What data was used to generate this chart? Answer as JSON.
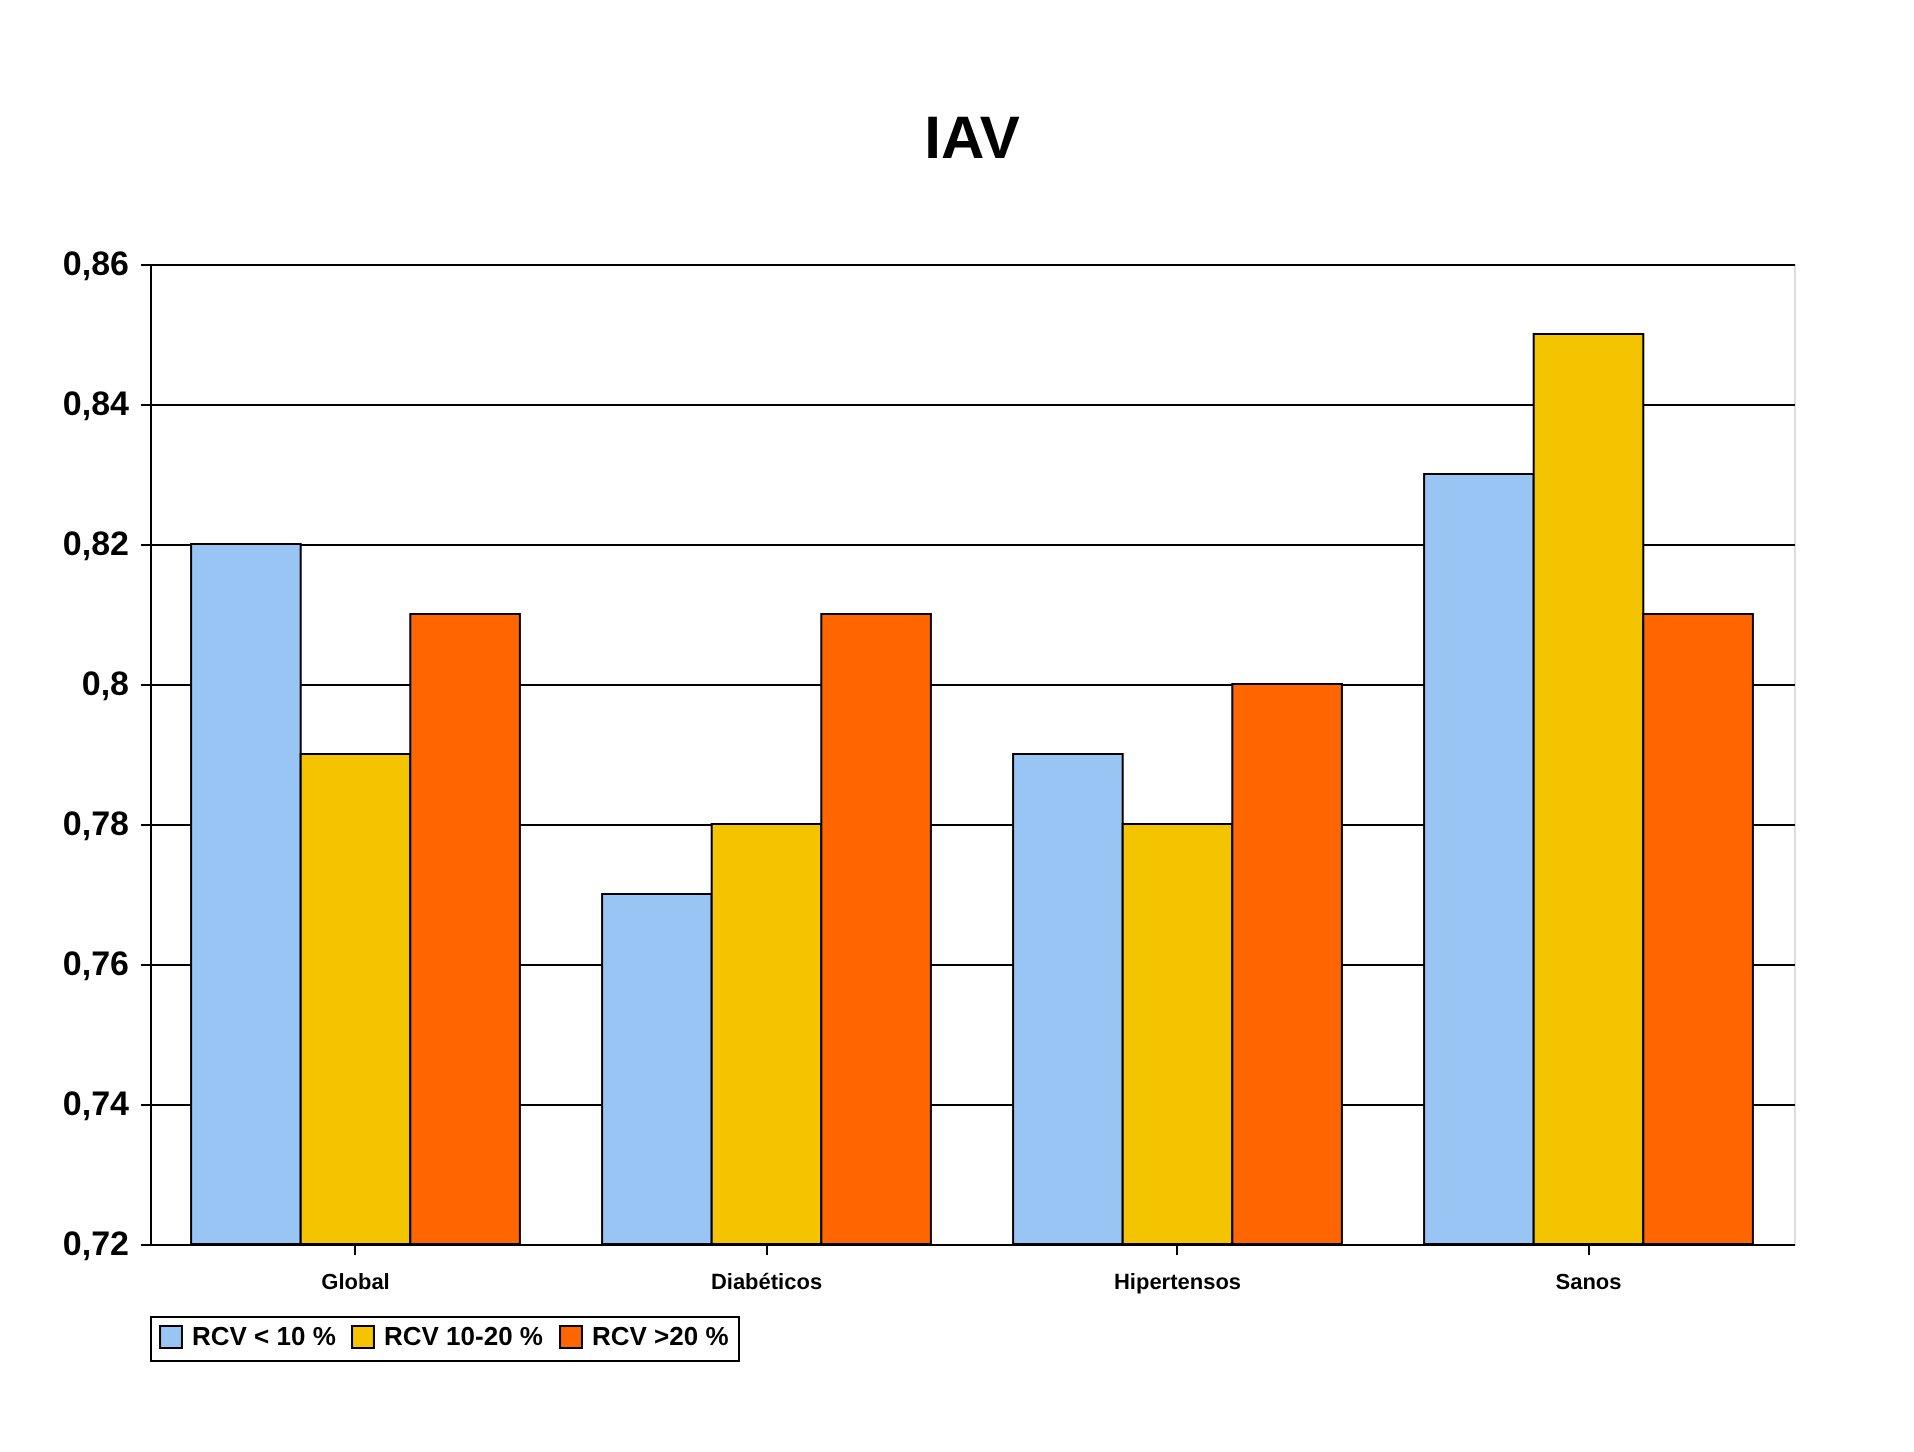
{
  "chart_data": {
    "type": "bar",
    "title": "IAV",
    "categories": [
      "Global",
      "Diabéticos",
      "Hipertensos",
      "Sanos"
    ],
    "series": [
      {
        "name": "RCV < 10 %",
        "color": "#99c5f5",
        "values": [
          0.82,
          0.77,
          0.79,
          0.83
        ]
      },
      {
        "name": "RCV 10-20 %",
        "color": "#f5c400",
        "values": [
          0.79,
          0.78,
          0.78,
          0.85
        ]
      },
      {
        "name": "RCV >20 %",
        "color": "#ff6600",
        "values": [
          0.81,
          0.81,
          0.8,
          0.81
        ]
      }
    ],
    "ylim": [
      0.72,
      0.86
    ],
    "yticks": [
      {
        "value": 0.72,
        "label": "0,72"
      },
      {
        "value": 0.74,
        "label": "0,74"
      },
      {
        "value": 0.76,
        "label": "0,76"
      },
      {
        "value": 0.78,
        "label": "0,78"
      },
      {
        "value": 0.8,
        "label": "0,8"
      },
      {
        "value": 0.82,
        "label": "0,82"
      },
      {
        "value": 0.84,
        "label": "0,84"
      },
      {
        "value": 0.86,
        "label": "0,86"
      }
    ],
    "grid": "y",
    "legend": "bottom"
  }
}
